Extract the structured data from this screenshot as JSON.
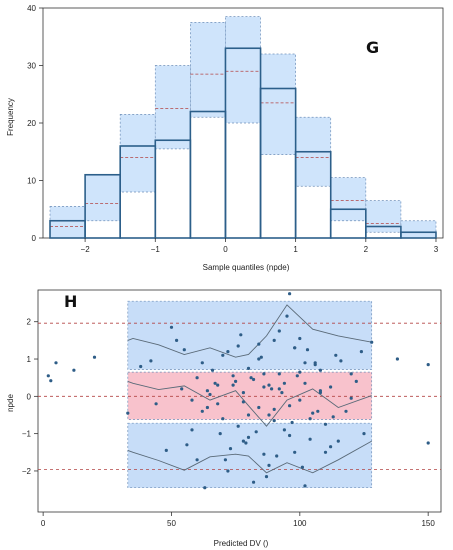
{
  "chart_data": [
    {
      "type": "bar",
      "panel_label": "G",
      "xlabel": "Sample quantiles (npde)",
      "ylabel": "Frequency",
      "xlim": [
        -2.6,
        3.1
      ],
      "ylim": [
        0,
        40
      ],
      "x_ticks": [
        -2,
        -1,
        0,
        1,
        2,
        3
      ],
      "y_ticks": [
        0,
        10,
        20,
        30,
        40
      ],
      "bin_edges": [
        -2.5,
        -2,
        -1.5,
        -1,
        -0.5,
        0,
        0.5,
        1,
        1.5,
        2,
        2.5,
        3
      ],
      "series": [
        {
          "name": "",
          "role": "observed",
          "values": [
            3,
            11,
            16,
            17,
            22,
            33,
            26,
            15,
            5,
            2,
            1
          ]
        },
        {
          "name": "",
          "role": "pi_lower",
          "values": [
            0,
            3,
            8,
            15.5,
            21,
            20,
            14.5,
            9,
            3,
            1,
            0
          ]
        },
        {
          "name": "",
          "role": "pi_upper",
          "values": [
            5.5,
            11,
            21.5,
            30,
            37.5,
            38.5,
            32,
            21,
            10.5,
            6.5,
            3
          ]
        },
        {
          "name": "",
          "role": "pi_median",
          "values": [
            2,
            6,
            14,
            22.5,
            28.5,
            29,
            23.5,
            14,
            6.5,
            2.5,
            1
          ]
        }
      ],
      "colors": {
        "band": "#cfe4fb",
        "band_edge": "#6f8fb8",
        "bar_edge": "#2c5f8a",
        "median": "#b34444"
      },
      "grid": false
    },
    {
      "type": "scatter",
      "panel_label": "H",
      "xlabel": "Predicted DV ()",
      "ylabel": "npde",
      "xlim": [
        -2,
        155
      ],
      "ylim": [
        -3.1,
        2.85
      ],
      "x_ticks": [
        0,
        50,
        100,
        150
      ],
      "y_ticks": [
        -2,
        -1,
        0,
        1,
        2
      ],
      "reference_lines": [
        -1.96,
        0,
        1.96
      ],
      "band_x": [
        33,
        35,
        45,
        55,
        65,
        75,
        80,
        87,
        95,
        105,
        115,
        128
      ],
      "bands": [
        {
          "name": "",
          "role": "upper_pi",
          "lower": [
            0.72,
            0.72,
            0.72,
            0.72,
            0.72,
            0.72,
            0.72,
            0.72,
            0.72,
            0.72,
            0.72,
            0.72
          ],
          "upper": [
            2.55,
            2.55,
            2.55,
            2.55,
            2.55,
            2.55,
            2.55,
            2.55,
            2.55,
            2.55,
            2.55,
            2.55
          ],
          "median": [
            1.5,
            1.55,
            1.38,
            1.12,
            1.3,
            1.05,
            1.12,
            1.62,
            2.45,
            1.8,
            1.62,
            1.45
          ]
        },
        {
          "name": "",
          "role": "median_pi",
          "lower": [
            -0.62,
            -0.62,
            -0.62,
            -0.62,
            -0.62,
            -0.62,
            -0.62,
            -0.62,
            -0.62,
            -0.62,
            -0.62,
            -0.62
          ],
          "upper": [
            0.65,
            0.65,
            0.65,
            0.65,
            0.65,
            0.65,
            0.65,
            0.65,
            0.65,
            0.65,
            0.65,
            0.65
          ],
          "median": [
            0.4,
            0.35,
            0.18,
            0.28,
            -0.1,
            0.15,
            -0.25,
            -0.8,
            -0.1,
            0.2,
            -0.3,
            0.02
          ]
        },
        {
          "name": "",
          "role": "lower_pi",
          "lower": [
            -2.45,
            -2.45,
            -2.45,
            -2.45,
            -2.45,
            -2.45,
            -2.45,
            -2.45,
            -2.45,
            -2.45,
            -2.45,
            -2.45
          ],
          "upper": [
            -0.72,
            -0.72,
            -0.72,
            -0.72,
            -0.72,
            -0.72,
            -0.72,
            -0.72,
            -0.72,
            -0.72,
            -0.72,
            -0.72
          ],
          "median": [
            -1.45,
            -1.5,
            -1.72,
            -1.98,
            -1.62,
            -1.55,
            -1.6,
            -2.05,
            -1.78,
            -2.05,
            -1.7,
            -1.2
          ]
        }
      ],
      "points": {
        "x": [
          2,
          3,
          5,
          12,
          20,
          33,
          38,
          42,
          50,
          54,
          58,
          60,
          62,
          64,
          66,
          68,
          70,
          72,
          74,
          76,
          78,
          80,
          82,
          84,
          86,
          88,
          90,
          92,
          94,
          96,
          98,
          100,
          102,
          104,
          106,
          108,
          110,
          112,
          114,
          118,
          120,
          125,
          128,
          138,
          150,
          150,
          44,
          52,
          56,
          60,
          65,
          70,
          72,
          75,
          78,
          80,
          82,
          84,
          86,
          88,
          90,
          92,
          95,
          97,
          99,
          101,
          103,
          105,
          108,
          112,
          116,
          120,
          124,
          48,
          55,
          63,
          67,
          71,
          77,
          79,
          81,
          83,
          85,
          87,
          89,
          91,
          93,
          96,
          98,
          100,
          102,
          106,
          110,
          115,
          122,
          58,
          62,
          68,
          73,
          76,
          80,
          84,
          88,
          92,
          96,
          100,
          104,
          108,
          113,
          64,
          69,
          74,
          78,
          86,
          90,
          94,
          98,
          102,
          107
        ],
        "y": [
          0.55,
          0.42,
          0.9,
          0.7,
          1.05,
          -0.45,
          0.8,
          0.95,
          1.85,
          0.2,
          -0.1,
          0.5,
          -0.4,
          0.15,
          0.7,
          -0.2,
          -0.6,
          1.2,
          0.3,
          -0.8,
          0.1,
          -1.1,
          0.45,
          -0.3,
          0.6,
          -0.5,
          1.5,
          0.2,
          -0.9,
          2.75,
          1.3,
          -0.1,
          0.35,
          -0.6,
          0.9,
          0.1,
          -1.5,
          0.25,
          1.1,
          -0.4,
          0.6,
          -1.0,
          1.45,
          1.0,
          0.85,
          -1.25,
          -0.2,
          1.5,
          -1.3,
          -1.7,
          0.05,
          1.1,
          -2.0,
          0.4,
          -0.15,
          0.75,
          -2.3,
          1.4,
          -1.55,
          0.3,
          -0.35,
          1.75,
          2.15,
          -0.7,
          0.55,
          -1.9,
          1.25,
          -0.45,
          0.15,
          -1.35,
          0.95,
          -0.05,
          1.2,
          -1.45,
          1.25,
          -2.45,
          0.35,
          -1.7,
          1.65,
          -1.25,
          0.5,
          -0.95,
          1.05,
          -2.15,
          0.2,
          -1.6,
          0.1,
          -1.05,
          1.3,
          0.65,
          -2.4,
          0.85,
          -0.75,
          -1.2,
          0.4,
          -0.9,
          0.9,
          0.3,
          -1.4,
          1.35,
          -0.5,
          1.0,
          -1.85,
          0.6,
          -0.25,
          1.55,
          -1.15,
          0.7,
          -0.55,
          -0.3,
          -1.0,
          0.55,
          -1.2,
          0.25,
          -0.65,
          0.35,
          -1.5,
          0.9,
          -0.4
        ]
      },
      "colors": {
        "upper_band": "#c7ddf8",
        "median_band": "#f8c2cc",
        "band_edge": "#6f8fb8",
        "median_line": "#5a6a78",
        "points": "#2e5d87",
        "ref_line": "#b34444"
      },
      "grid": false
    }
  ]
}
